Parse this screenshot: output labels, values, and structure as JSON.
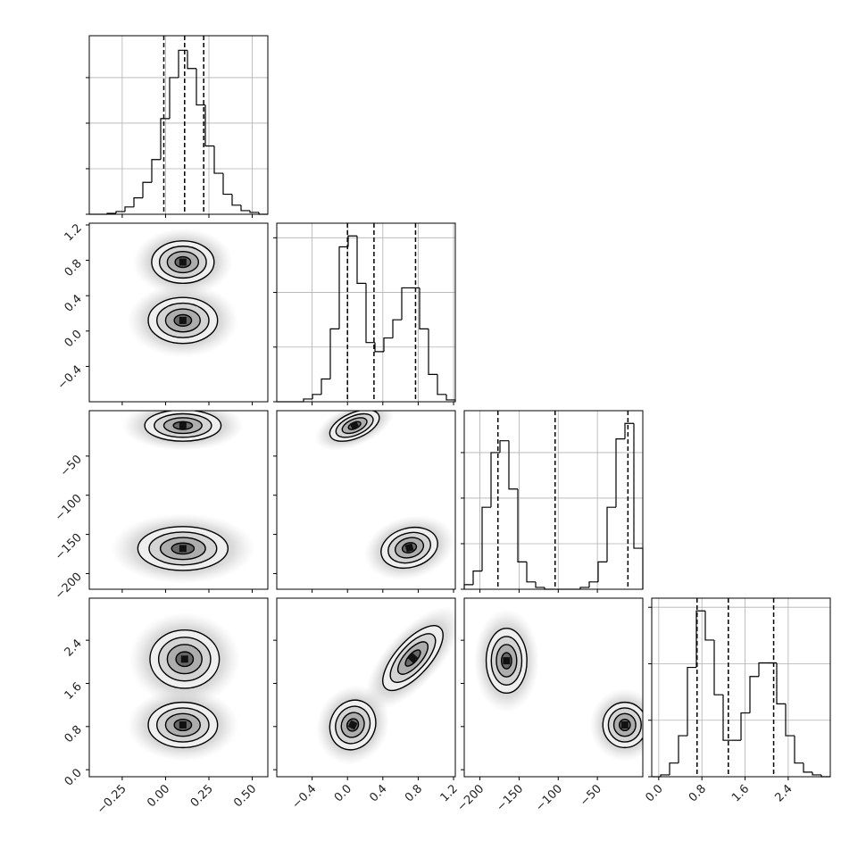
{
  "chart_data": {
    "type": "corner",
    "grid": true,
    "color": "#000000",
    "params": [
      {
        "lim": [
          -0.44,
          0.59
        ],
        "ticks": [
          {
            "value": -0.25,
            "label": "−0.25"
          },
          {
            "value": 0,
            "label": "0.00"
          },
          {
            "value": 0.25,
            "label": "0.25"
          },
          {
            "value": 0.5,
            "label": "0.50"
          }
        ],
        "quantiles": [
          -0.01,
          0.11,
          0.22
        ],
        "hist": {
          "bins": [
            -0.44,
            -0.3885,
            -0.337,
            -0.2855,
            -0.234,
            -0.1825,
            -0.131,
            -0.0795,
            -0.028,
            0.0235,
            0.075,
            0.1265,
            0.178,
            0.2295,
            0.281,
            0.3325,
            0.384,
            0.4355,
            0.487,
            0.5385,
            0.59
          ],
          "counts": [
            0,
            0,
            1,
            3,
            8,
            18,
            35,
            60,
            105,
            150,
            180,
            160,
            120,
            75,
            45,
            22,
            10,
            4,
            2,
            0
          ],
          "ylim": [
            0,
            196
          ],
          "yticks": [
            0,
            50,
            100,
            150
          ]
        }
      },
      {
        "lim": [
          -0.8,
          1.22
        ],
        "ticks": [
          {
            "value": -0.4,
            "label": "−0.4"
          },
          {
            "value": 0,
            "label": "0.0"
          },
          {
            "value": 0.4,
            "label": "0.4"
          },
          {
            "value": 0.8,
            "label": "0.8"
          },
          {
            "value": 1.2,
            "label": "1.2"
          }
        ],
        "quantiles": [
          0.0,
          0.3,
          0.77
        ],
        "hist": {
          "bins": [
            -0.8,
            -0.699,
            -0.598,
            -0.497,
            -0.396,
            -0.295,
            -0.194,
            -0.093,
            0.008,
            0.109,
            0.21,
            0.311,
            0.412,
            0.513,
            0.614,
            0.715,
            0.816,
            0.917,
            1.018,
            1.119,
            1.22
          ],
          "counts": [
            0,
            0,
            0,
            3,
            8,
            25,
            80,
            170,
            182,
            130,
            65,
            55,
            70,
            90,
            125,
            125,
            80,
            30,
            8,
            2
          ],
          "ylim": [
            0,
            196
          ],
          "yticks": [
            0,
            60,
            120,
            180
          ]
        }
      },
      {
        "lim": [
          -220,
          8
        ],
        "ticks": [
          {
            "value": -200,
            "label": "−200"
          },
          {
            "value": -150,
            "label": "−150"
          },
          {
            "value": -100,
            "label": "−100"
          },
          {
            "value": -50,
            "label": "−50"
          }
        ],
        "quantiles": [
          -177,
          -104,
          -11
        ],
        "hist": {
          "bins": [
            -220,
            -208.6,
            -197.2,
            -185.8,
            -174.4,
            -163,
            -151.6,
            -140.2,
            -128.8,
            -117.4,
            -106,
            -94.6,
            -83.2,
            -71.8,
            -60.4,
            -49,
            -37.6,
            -26.2,
            -14.8,
            -3.4,
            8
          ],
          "counts": [
            5,
            20,
            90,
            150,
            163,
            110,
            30,
            8,
            2,
            0,
            0,
            0,
            0,
            2,
            8,
            30,
            90,
            165,
            182,
            45
          ],
          "ylim": [
            0,
            196
          ],
          "yticks": [
            0,
            50,
            100,
            150
          ]
        }
      },
      {
        "lim": [
          -0.13,
          3.18
        ],
        "ticks": [
          {
            "value": 0,
            "label": "0.0"
          },
          {
            "value": 0.8,
            "label": "0.8"
          },
          {
            "value": 1.6,
            "label": "1.6"
          },
          {
            "value": 2.4,
            "label": "2.4"
          }
        ],
        "quantiles": [
          0.71,
          1.29,
          2.13
        ],
        "hist": {
          "bins": [
            -0.13,
            0.0355,
            0.201,
            0.3665,
            0.532,
            0.6975,
            0.863,
            1.0285,
            1.194,
            1.3595,
            1.525,
            1.6905,
            1.856,
            2.0215,
            2.187,
            2.3525,
            2.518,
            2.6835,
            2.849,
            3.0145,
            3.18
          ],
          "counts": [
            0,
            2,
            15,
            45,
            120,
            182,
            150,
            90,
            40,
            40,
            70,
            110,
            125,
            125,
            80,
            45,
            15,
            5,
            2,
            0
          ],
          "ylim": [
            0,
            196
          ],
          "yticks": [
            0,
            62,
            124,
            186
          ]
        }
      }
    ],
    "pairs": [
      [
        [
          {
            "x": 0.1,
            "y": 0.78,
            "sx": 0.09,
            "sy": 0.12,
            "rho": 0
          },
          {
            "x": 0.1,
            "y": 0.12,
            "sx": 0.1,
            "sy": 0.13,
            "rho": 0
          }
        ]
      ],
      [
        [
          {
            "x": 0.1,
            "y": -11,
            "sx": 0.11,
            "sy": 10,
            "rho": 0
          },
          {
            "x": 0.1,
            "y": -168,
            "sx": 0.13,
            "sy": 14,
            "rho": 0
          }
        ],
        [
          {
            "x": 0.08,
            "y": -11,
            "sx": 0.14,
            "sy": 10,
            "rho": 0.5
          },
          {
            "x": 0.7,
            "y": -167,
            "sx": 0.16,
            "sy": 13,
            "rho": 0.2
          }
        ]
      ],
      [
        [
          {
            "x": 0.11,
            "y": 2.05,
            "sx": 0.1,
            "sy": 0.27,
            "rho": 0
          },
          {
            "x": 0.1,
            "y": 0.83,
            "sx": 0.1,
            "sy": 0.21,
            "rho": 0
          }
        ],
        [
          {
            "x": 0.74,
            "y": 2.07,
            "sx": 0.17,
            "sy": 0.3,
            "rho": 0.7
          },
          {
            "x": 0.06,
            "y": 0.83,
            "sx": 0.13,
            "sy": 0.23,
            "rho": 0.1
          }
        ],
        [
          {
            "x": -166,
            "y": 2.02,
            "sx": 13,
            "sy": 0.3,
            "rho": 0
          },
          {
            "x": -15,
            "y": 0.83,
            "sx": 14,
            "sy": 0.21,
            "rho": 0
          }
        ]
      ]
    ]
  }
}
